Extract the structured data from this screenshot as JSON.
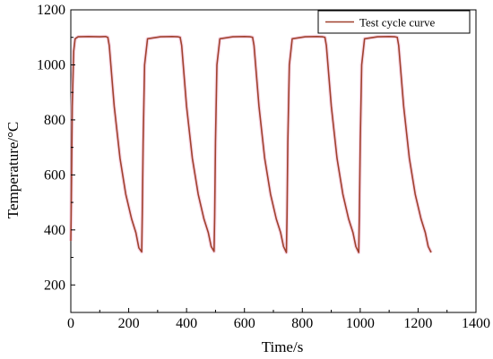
{
  "chart_data": {
    "type": "line",
    "title": "",
    "xlabel": "Time/s",
    "ylabel": "Temperature/°C",
    "xlim": [
      0,
      1400
    ],
    "ylim": [
      100,
      1200
    ],
    "xticks": [
      0,
      200,
      400,
      600,
      800,
      1000,
      1200,
      1400
    ],
    "yticks": [
      200,
      400,
      600,
      800,
      1000,
      1200
    ],
    "grid": false,
    "legend_position": "top-right",
    "series": [
      {
        "name": "Test cycle curve",
        "color": "#a0412d",
        "x": [
          0,
          2,
          5,
          10,
          15,
          25,
          60,
          100,
          120,
          128,
          133,
          150,
          170,
          190,
          210,
          225,
          235,
          245,
          247,
          250,
          255,
          265,
          310,
          350,
          370,
          378,
          383,
          400,
          420,
          440,
          460,
          475,
          485,
          495,
          497,
          500,
          505,
          515,
          560,
          600,
          620,
          628,
          633,
          650,
          670,
          690,
          710,
          725,
          735,
          745,
          747,
          750,
          755,
          765,
          810,
          850,
          870,
          878,
          883,
          900,
          920,
          940,
          960,
          975,
          985,
          995,
          997,
          1000,
          1005,
          1015,
          1060,
          1100,
          1120,
          1128,
          1133,
          1150,
          1170,
          1190,
          1210,
          1225,
          1235,
          1245
        ],
        "y": [
          360,
          520,
          850,
          1050,
          1095,
          1102,
          1103,
          1102,
          1103,
          1100,
          1070,
          850,
          660,
          530,
          440,
          390,
          335,
          320,
          450,
          720,
          1000,
          1095,
          1102,
          1103,
          1102,
          1100,
          1070,
          850,
          660,
          530,
          440,
          390,
          340,
          322,
          450,
          720,
          1000,
          1095,
          1102,
          1103,
          1102,
          1100,
          1070,
          850,
          660,
          530,
          440,
          390,
          340,
          318,
          450,
          720,
          1000,
          1095,
          1102,
          1103,
          1102,
          1100,
          1070,
          850,
          660,
          530,
          440,
          390,
          340,
          318,
          450,
          720,
          1000,
          1095,
          1102,
          1103,
          1102,
          1100,
          1070,
          850,
          660,
          530,
          440,
          390,
          340,
          318
        ]
      }
    ]
  }
}
